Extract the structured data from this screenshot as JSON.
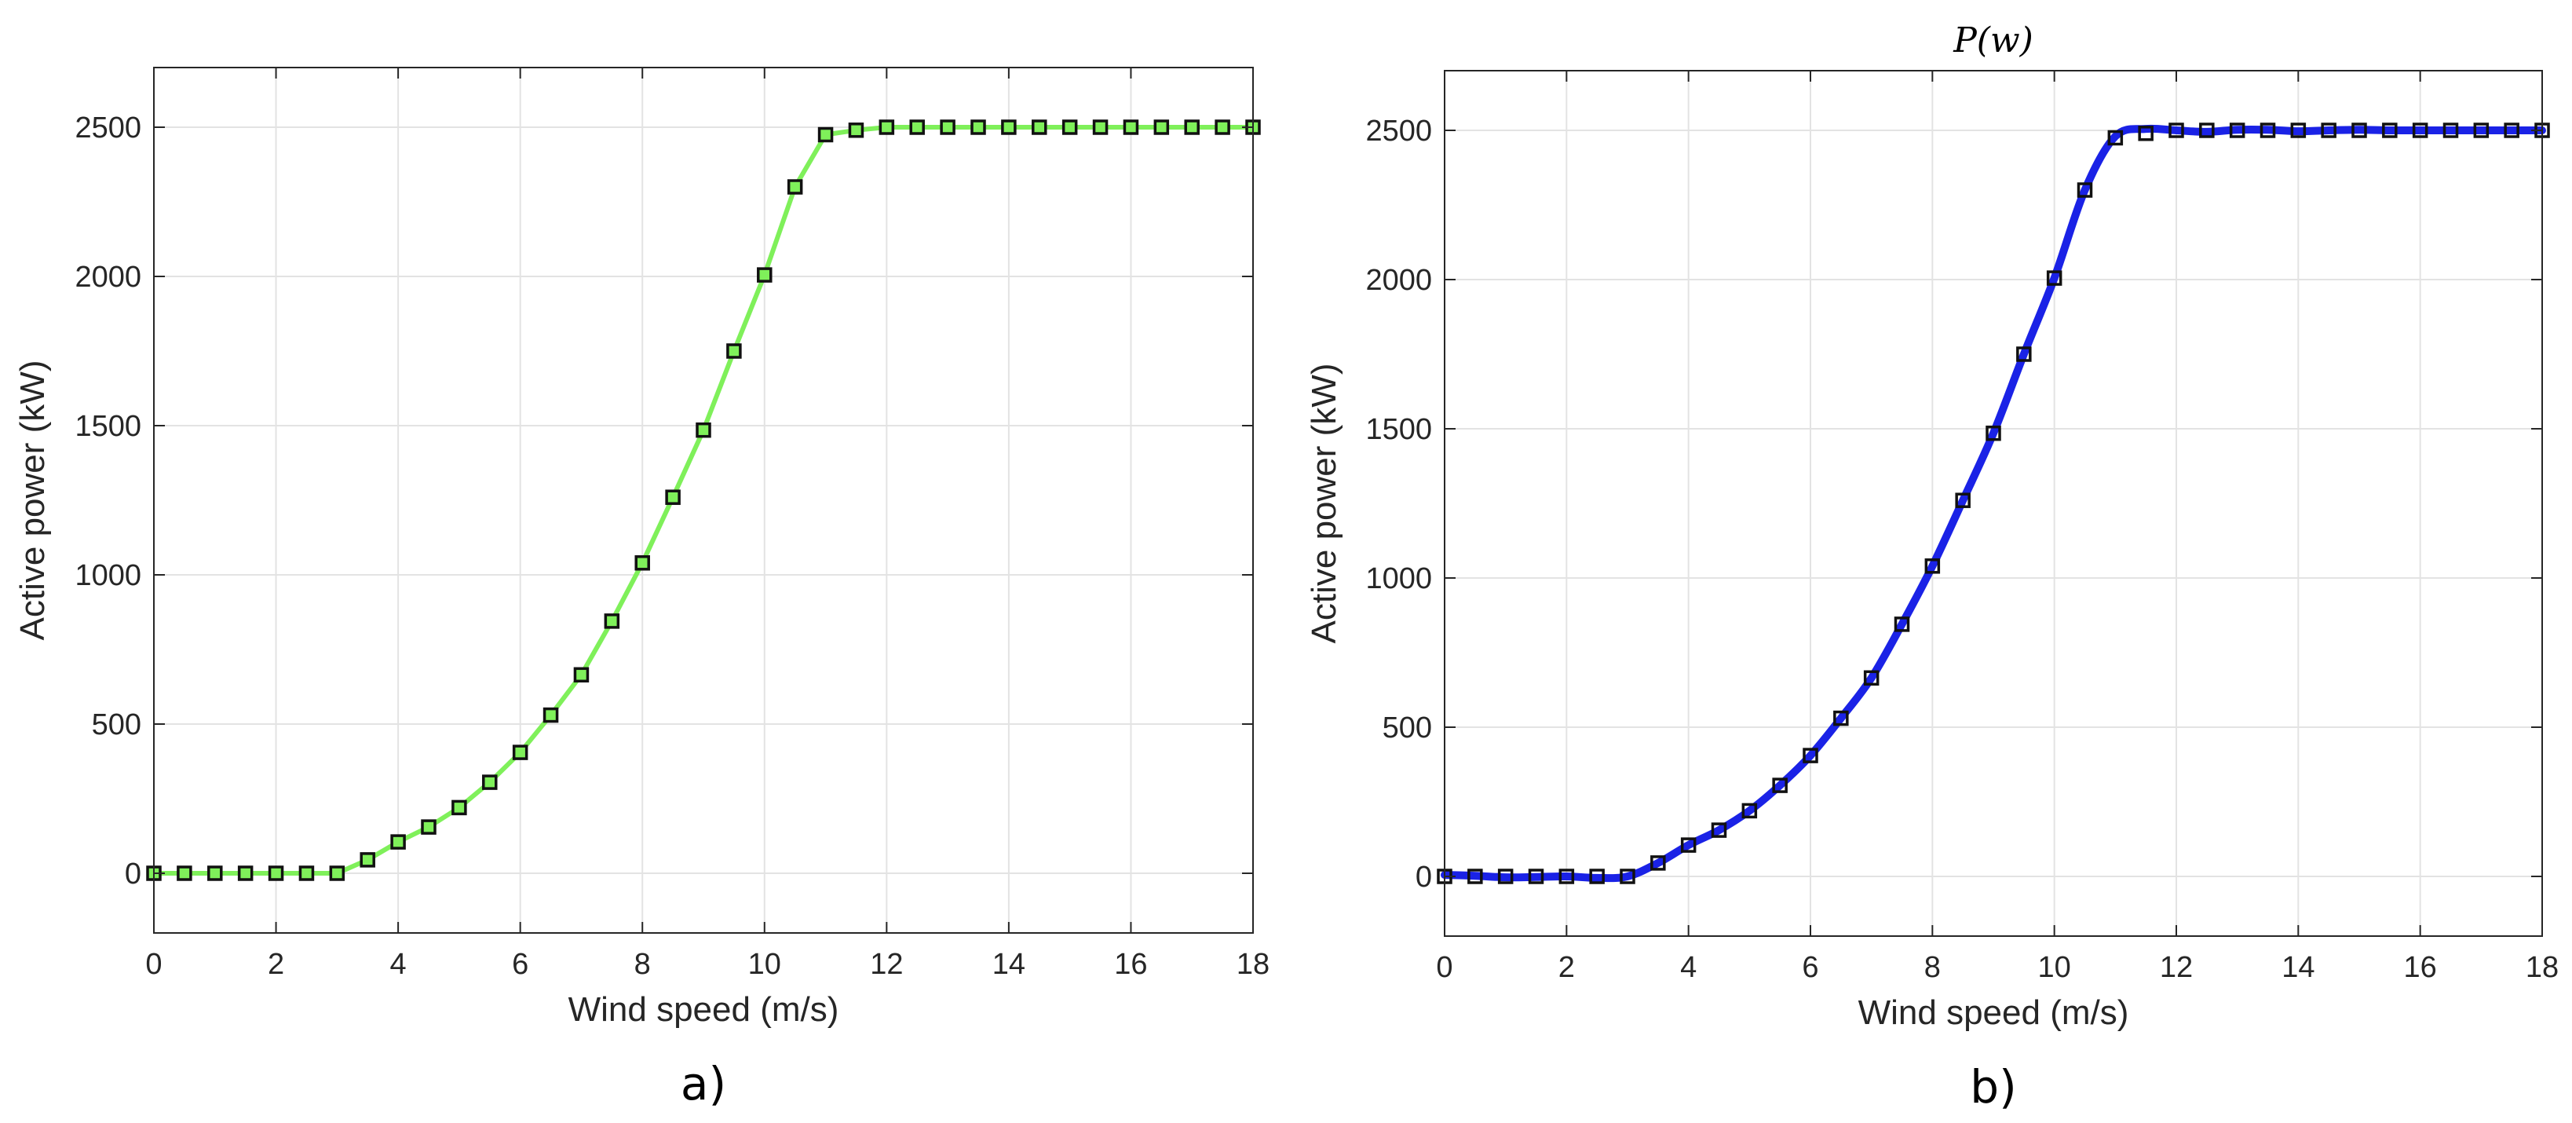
{
  "chart_data": [
    {
      "type": "line",
      "panel_label": "a)",
      "title": "",
      "xlabel": "Wind speed (m/s)",
      "ylabel": "Active power (kW)",
      "xlim": [
        0,
        18
      ],
      "ylim": [
        -200,
        2700
      ],
      "xticks": [
        "0",
        "2",
        "4",
        "6",
        "8",
        "10",
        "12",
        "14",
        "16",
        "18"
      ],
      "yticks": [
        "0",
        "500",
        "1000",
        "1500",
        "2000",
        "2500"
      ],
      "grid": true,
      "series": [
        {
          "color": "#7ff05a",
          "marker": "square",
          "x": [
            0,
            0.5,
            1,
            1.5,
            2,
            2.5,
            3,
            3.5,
            4,
            4.5,
            5,
            5.5,
            6,
            6.5,
            7,
            7.5,
            8,
            8.5,
            9,
            9.5,
            10,
            10.5,
            11,
            11.5,
            12,
            12.5,
            13,
            13.5,
            14,
            14.5,
            15,
            15.5,
            16,
            16.5,
            17,
            17.5,
            18
          ],
          "y": [
            0,
            0,
            0,
            0,
            0,
            0,
            0,
            45,
            105,
            155,
            220,
            305,
            405,
            530,
            665,
            845,
            1040,
            1260,
            1485,
            1750,
            2005,
            2300,
            2475,
            2490,
            2500,
            2500,
            2500,
            2500,
            2500,
            2500,
            2500,
            2500,
            2500,
            2500,
            2500,
            2500,
            2500
          ]
        }
      ]
    },
    {
      "type": "line",
      "panel_label": "b)",
      "title": "P(w)",
      "xlabel": "Wind speed (m/s)",
      "ylabel": "Active power (kW)",
      "xlim": [
        0,
        18
      ],
      "ylim": [
        -200,
        2700
      ],
      "xticks": [
        "0",
        "2",
        "4",
        "6",
        "8",
        "10",
        "12",
        "14",
        "16",
        "18"
      ],
      "yticks": [
        "0",
        "500",
        "1000",
        "1500",
        "2000",
        "2500"
      ],
      "grid": true,
      "series": [
        {
          "color": "#1a22e6",
          "marker": "none",
          "x": [
            0,
            0.5,
            1,
            1.5,
            2,
            2.5,
            3,
            3.5,
            4,
            4.5,
            5,
            5.5,
            6,
            6.5,
            7,
            7.5,
            8,
            8.5,
            9,
            9.5,
            10,
            10.5,
            11,
            11.5,
            12,
            12.5,
            13,
            13.5,
            14,
            14.5,
            15,
            15.5,
            16,
            16.5,
            17,
            17.5,
            18
          ],
          "y": [
            5,
            2,
            -3,
            -2,
            0,
            -5,
            0,
            45,
            105,
            155,
            220,
            305,
            405,
            530,
            665,
            845,
            1040,
            1260,
            1485,
            1750,
            2005,
            2300,
            2480,
            2505,
            2500,
            2495,
            2502,
            2502,
            2497,
            2500,
            2502,
            2500,
            2500,
            2500,
            2500,
            2500,
            2500
          ]
        },
        {
          "color": "#262626",
          "marker": "square",
          "x": [
            0,
            0.5,
            1,
            1.5,
            2,
            2.5,
            3,
            3.5,
            4,
            4.5,
            5,
            5.5,
            6,
            6.5,
            7,
            7.5,
            8,
            8.5,
            9,
            9.5,
            10,
            10.5,
            11,
            11.5,
            12,
            12.5,
            13,
            13.5,
            14,
            14.5,
            15,
            15.5,
            16,
            16.5,
            17,
            17.5,
            18
          ],
          "y": [
            0,
            0,
            0,
            0,
            0,
            0,
            0,
            45,
            105,
            155,
            220,
            305,
            405,
            530,
            665,
            845,
            1040,
            1260,
            1485,
            1750,
            2005,
            2300,
            2475,
            2490,
            2500,
            2500,
            2500,
            2500,
            2500,
            2500,
            2500,
            2500,
            2500,
            2500,
            2500,
            2500,
            2500
          ]
        }
      ]
    }
  ]
}
